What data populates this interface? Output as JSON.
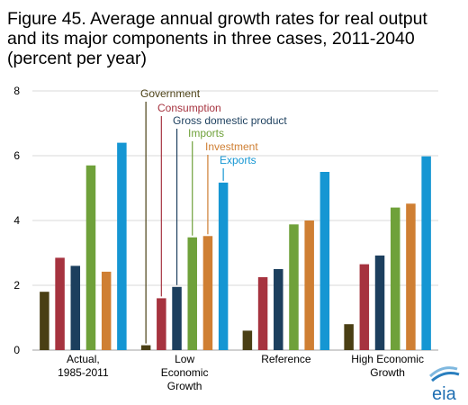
{
  "title_lines": [
    "Figure 45. Average annual growth rates for real output",
    "and its major components in three cases, 2011-2040",
    "(percent per year)"
  ],
  "chart_data": {
    "type": "bar",
    "title": "Figure 45. Average annual growth rates for real output and its major components in three cases, 2011-2040 (percent per year)",
    "xlabel": "",
    "ylabel": "",
    "ylim": [
      0,
      8
    ],
    "yticks": [
      "0",
      "2",
      "4",
      "6",
      "8"
    ],
    "grid": true,
    "legend": "inline annotations above Low Economic Growth bars",
    "categories": [
      [
        "Actual,",
        "1985-2011"
      ],
      [
        "Low",
        "Economic",
        "Growth"
      ],
      [
        "Reference"
      ],
      [
        "High Economic",
        "Growth"
      ]
    ],
    "series": [
      {
        "name": "Government",
        "color": "#4a3f14",
        "values": [
          1.8,
          0.15,
          0.6,
          0.8
        ]
      },
      {
        "name": "Consumption",
        "color": "#a6333f",
        "values": [
          2.85,
          1.6,
          2.25,
          2.65
        ]
      },
      {
        "name": "Gross domestic product",
        "color": "#1c3f5e",
        "values": [
          2.6,
          1.95,
          2.5,
          2.92
        ]
      },
      {
        "name": "Imports",
        "color": "#6fa13a",
        "values": [
          5.7,
          3.48,
          3.88,
          4.4
        ]
      },
      {
        "name": "Investment",
        "color": "#cf7f33",
        "values": [
          2.42,
          3.52,
          4.0,
          4.52
        ]
      },
      {
        "name": "Exports",
        "color": "#1596d3",
        "values": [
          6.4,
          5.17,
          5.5,
          5.98
        ]
      }
    ]
  },
  "logo": {
    "text": "eia"
  }
}
